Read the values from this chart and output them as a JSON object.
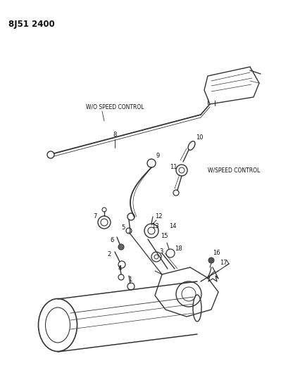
{
  "title": "8J51 2400",
  "bg_color": "#ffffff",
  "line_color": "#333333",
  "text_color": "#111111",
  "labels": {
    "wo_speed_control": "W/O SPEED CONTROL",
    "w_speed_control": "W/SPEED CONTROL"
  }
}
